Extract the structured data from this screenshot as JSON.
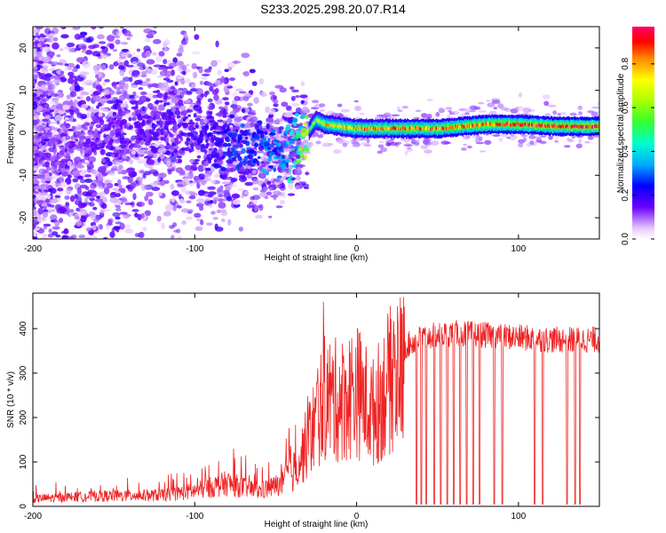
{
  "title": "S233.2025.298.20.07.R14",
  "chart_data": [
    {
      "type": "heatmap",
      "title": "S233.2025.298.20.07.R14",
      "xlabel": "Height of straight line (km)",
      "ylabel": "Frequency (Hz)",
      "xlim": [
        -200,
        150
      ],
      "ylim": [
        -25,
        25
      ],
      "xticks": [
        -200,
        -100,
        0,
        100
      ],
      "yticks": [
        -20,
        -10,
        0,
        10,
        20
      ],
      "colorbar": {
        "label": "Normalized spectral amplitude",
        "range": [
          0,
          0.97
        ],
        "ticks": [
          0.0,
          0.2,
          0.4,
          0.6,
          0.8
        ],
        "tick_labels": [
          "0.0",
          "0.2",
          "0.4",
          "0.6",
          "0.8"
        ]
      },
      "ridge": {
        "description": "dominant frequency track",
        "height_km": [
          -200,
          -150,
          -120,
          -100,
          -80,
          -60,
          -45,
          -35,
          -25,
          -20,
          0,
          25,
          50,
          80,
          100,
          125,
          150
        ],
        "frequency_hz": [
          -4,
          -1,
          2,
          -1,
          -3,
          -3,
          -4,
          -2,
          3,
          2,
          1,
          1,
          1,
          2,
          2,
          1.5,
          1.5
        ],
        "amplitude": [
          0.1,
          0.12,
          0.15,
          0.15,
          0.2,
          0.25,
          0.3,
          0.45,
          0.7,
          0.75,
          0.8,
          0.85,
          0.85,
          0.9,
          0.9,
          0.92,
          0.95
        ]
      }
    },
    {
      "type": "line",
      "xlabel": "Height of straight line (km)",
      "ylabel": "SNR (10 * v/v)",
      "xlim": [
        -200,
        150
      ],
      "ylim": [
        0,
        480
      ],
      "xticks": [
        -200,
        -100,
        0,
        100
      ],
      "yticks": [
        0,
        100,
        200,
        300,
        400
      ],
      "color": "#ee2222",
      "series": [
        {
          "name": "SNR",
          "envelope_x": [
            -200,
            -160,
            -120,
            -100,
            -80,
            -60,
            -45,
            -35,
            -25,
            -20,
            -10,
            0,
            10,
            20,
            30,
            40,
            60,
            80,
            100,
            120,
            150
          ],
          "envelope_y": [
            15,
            20,
            22,
            30,
            45,
            30,
            45,
            120,
            220,
            280,
            270,
            300,
            240,
            320,
            360,
            380,
            390,
            385,
            380,
            375,
            375
          ],
          "dropouts_x": [
            37,
            40,
            43,
            48,
            52,
            56,
            60,
            64,
            68,
            72,
            76,
            85,
            90,
            110,
            115,
            130,
            135,
            138
          ]
        }
      ]
    }
  ]
}
